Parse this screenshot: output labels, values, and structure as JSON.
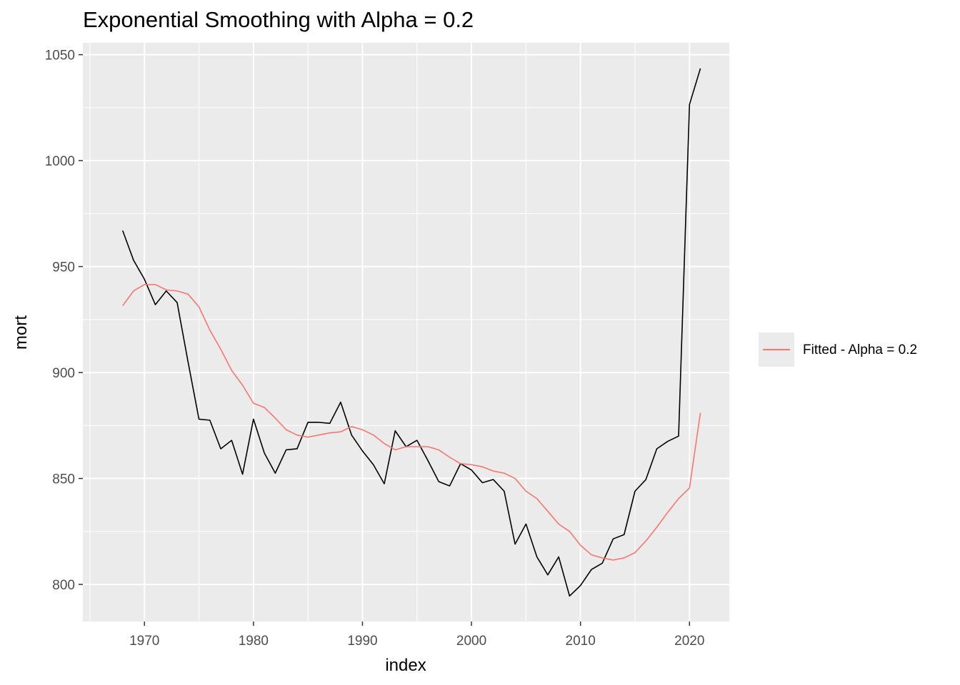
{
  "chart_data": {
    "type": "line",
    "title": "Exponential Smoothing with Alpha = 0.2",
    "xlabel": "index",
    "ylabel": "mort",
    "xlim": [
      1964.35,
      2023.65
    ],
    "ylim": [
      782.5,
      1055.6
    ],
    "x_ticks": [
      1970,
      1980,
      1990,
      2000,
      2010,
      2020
    ],
    "y_ticks": [
      800,
      850,
      900,
      950,
      1000,
      1050
    ],
    "grid": true,
    "legend_position": "right",
    "colors": {
      "panel": "#ebebeb",
      "grid": "#ffffff",
      "observed": "#000000",
      "fitted": "#f8766d"
    },
    "x": [
      1968,
      1969,
      1970,
      1971,
      1972,
      1973,
      1974,
      1975,
      1976,
      1977,
      1978,
      1979,
      1980,
      1981,
      1982,
      1983,
      1984,
      1985,
      1986,
      1987,
      1988,
      1989,
      1990,
      1991,
      1992,
      1993,
      1994,
      1995,
      1996,
      1997,
      1998,
      1999,
      2000,
      2001,
      2002,
      2003,
      2004,
      2005,
      2006,
      2007,
      2008,
      2009,
      2010,
      2011,
      2012,
      2013,
      2014,
      2015,
      2016,
      2017,
      2018,
      2019,
      2020,
      2021
    ],
    "series": [
      {
        "legend": false,
        "color": "#000000",
        "values": [
          967,
          953,
          944,
          932,
          938.5,
          933,
          905,
          878,
          877.5,
          864,
          868,
          852,
          878,
          862,
          852.5,
          863.5,
          864,
          876.5,
          876.5,
          876,
          886,
          870.5,
          863,
          856.5,
          847.5,
          872.5,
          865,
          868,
          858.5,
          848.5,
          846.5,
          857,
          854,
          848,
          849.5,
          844,
          819,
          828.5,
          813,
          804.5,
          813,
          794.5,
          799.5,
          807,
          810,
          821.5,
          823.5,
          844,
          849.5,
          864,
          867.5,
          870,
          1026.5,
          1043.5
        ]
      },
      {
        "name": "Fitted - Alpha = 0.2",
        "legend": true,
        "color": "#f8766d",
        "values": [
          931.5,
          938.5,
          941.5,
          941.5,
          939,
          938.5,
          937,
          931,
          920,
          911,
          901,
          894,
          885.5,
          883.5,
          878.5,
          873,
          870.5,
          869.5,
          870.5,
          871.5,
          872,
          874.5,
          873,
          870.5,
          866.5,
          863.5,
          865,
          865,
          865,
          863.5,
          860,
          857,
          856.5,
          855.5,
          853.5,
          852.5,
          850,
          844,
          840.5,
          834.5,
          828.5,
          825,
          818.5,
          814,
          812.5,
          811.5,
          812.5,
          815,
          820.5,
          827,
          834,
          840.5,
          845.5,
          881
        ]
      }
    ]
  }
}
